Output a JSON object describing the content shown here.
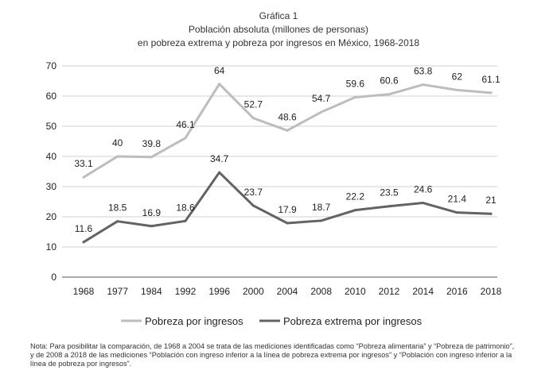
{
  "chart_data": {
    "type": "line",
    "title_lines": [
      "Gráfica 1",
      "Población absoluta (millones de personas)",
      "en pobreza extrema y pobreza por ingresos en México, 1968-2018"
    ],
    "categories": [
      "1968",
      "1977",
      "1984",
      "1992",
      "1996",
      "2000",
      "2004",
      "2008",
      "2010",
      "2012",
      "2014",
      "2016",
      "2018"
    ],
    "series": [
      {
        "name": "Pobreza por ingresos",
        "color": "#bdbdbd",
        "values": [
          33.1,
          40,
          39.8,
          46.1,
          64,
          52.7,
          48.6,
          54.7,
          59.6,
          60.6,
          63.8,
          62,
          61.1
        ],
        "labels": [
          "33.1",
          "40",
          "39.8",
          "46.1",
          "64",
          "52.7",
          "48.6",
          "54.7",
          "59.6",
          "60.6",
          "63.8",
          "62",
          "61.1"
        ]
      },
      {
        "name": "Pobreza extrema por ingresos",
        "color": "#636363",
        "values": [
          11.6,
          18.5,
          16.9,
          18.6,
          34.7,
          23.7,
          17.9,
          18.7,
          22.2,
          23.5,
          24.6,
          21.4,
          21
        ],
        "labels": [
          "11.6",
          "18.5",
          "16.9",
          "18.6",
          "34.7",
          "23.7",
          "17.9",
          "18.7",
          "22.2",
          "23.5",
          "24.6",
          "21.4",
          "21"
        ]
      }
    ],
    "ylim": [
      0,
      70
    ],
    "yticks": [
      "0",
      "10",
      "20",
      "30",
      "40",
      "50",
      "60",
      "70"
    ],
    "xlabel": "",
    "ylabel": "",
    "grid": true,
    "legend": "bottom-center"
  },
  "note": [
    "Nota: Para posibilitar la comparación, de 1968 a 2004 se trata de las mediciones identificadas como “Pobreza alimentaria” y “Pobreza de patrimonio”,",
    "y de 2008 a 2018 de las mediciones “Población con ingreso inferior a la línea de pobreza extrema por ingresos” y “Población con ingreso inferior a la",
    "línea de pobreza por ingresos”."
  ]
}
